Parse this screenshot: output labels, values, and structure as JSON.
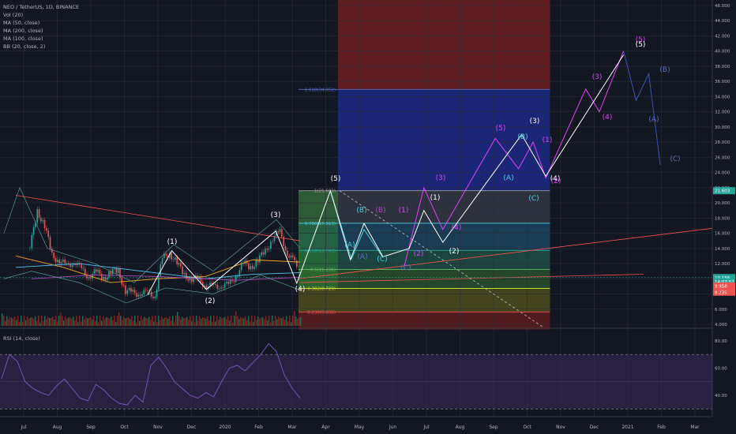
{
  "header": {
    "symbol_line": "NEO / TetherUS, 1D, BINANCE",
    "indicators": [
      "Vol (20)",
      "MA (50, close)",
      "MA (200, close)",
      "MA (100, close)",
      "BB (20, close, 2)"
    ]
  },
  "rsi_panel": {
    "label": "RSI (14, close)",
    "ticks": [
      "80.00",
      "60.00",
      "40.00"
    ]
  },
  "axis": {
    "price_ticks": [
      "46.000",
      "44.000",
      "42.000",
      "40.000",
      "38.000",
      "36.000",
      "34.000",
      "32.000",
      "30.000",
      "28.000",
      "26.000",
      "24.000",
      "22.000",
      "20.000",
      "18.000",
      "16.000",
      "14.000",
      "12.000",
      "10.000",
      "8.000",
      "6.000",
      "4.000"
    ],
    "time_ticks": [
      "Jul",
      "Aug",
      "Sep",
      "Oct",
      "Nov",
      "Dec",
      "2020",
      "Feb",
      "Mar",
      "Apr",
      "May",
      "Jun",
      "Jul",
      "Aug",
      "Sep",
      "Oct",
      "Nov",
      "Dec",
      "2021",
      "Feb",
      "Mar"
    ],
    "price_badges": [
      {
        "text": "21.603",
        "color": "#26a69a",
        "price": 21.603
      },
      {
        "text": "10.156",
        "color": "#26a69a",
        "price": 10.156
      },
      {
        "text": "14:07:57",
        "color": "#26a69a",
        "price": 9.6
      },
      {
        "text": "9.958",
        "color": "#ef5350",
        "price": 9.05
      },
      {
        "text": "8.235",
        "color": "#ef5350",
        "price": 8.235
      }
    ]
  },
  "fib_labels": [
    {
      "text": "1.618(34.952)",
      "price": 34.952
    },
    {
      "text": "1(21.603)",
      "price": 21.603
    },
    {
      "text": "0.786(17.313)",
      "price": 17.313
    },
    {
      "text": "0.618(13.743)",
      "price": 13.743
    },
    {
      "text": "0.5(11.236)",
      "price": 11.236
    },
    {
      "text": "0.382(8.729)",
      "price": 8.729
    },
    {
      "text": "0.236(5.636)",
      "price": 5.636
    }
  ],
  "wave_labels": [
    {
      "text": "(1)",
      "x": 218,
      "y": 309,
      "color": "#ffffff"
    },
    {
      "text": "(2)",
      "x": 266,
      "y": 384,
      "color": "#ffffff"
    },
    {
      "text": "(3)",
      "x": 349,
      "y": 275,
      "color": "#ffffff"
    },
    {
      "text": "(4)",
      "x": 380,
      "y": 369,
      "color": "#ffffff"
    },
    {
      "text": "(5)",
      "x": 425,
      "y": 229,
      "color": "#ffffff"
    },
    {
      "text": "(A)",
      "x": 443,
      "y": 313,
      "color": "#4dd0e1"
    },
    {
      "text": "(B)",
      "x": 458,
      "y": 269,
      "color": "#4dd0e1"
    },
    {
      "text": "(C)",
      "x": 484,
      "y": 331,
      "color": "#4dd0e1"
    },
    {
      "text": "(A)",
      "x": 459,
      "y": 328,
      "color": "#5c6bc0"
    },
    {
      "text": "(B)",
      "x": 482,
      "y": 269,
      "color": "#ab47bc"
    },
    {
      "text": "(C)",
      "x": 514,
      "y": 342,
      "color": "#5c6bc0"
    },
    {
      "text": "(1)",
      "x": 511,
      "y": 269,
      "color": "#e040fb"
    },
    {
      "text": "(2)",
      "x": 530,
      "y": 324,
      "color": "#e040fb"
    },
    {
      "text": "(3)",
      "x": 558,
      "y": 228,
      "color": "#e040fb"
    },
    {
      "text": "(1)",
      "x": 551,
      "y": 253,
      "color": "#ffffff"
    },
    {
      "text": "(2)",
      "x": 575,
      "y": 321,
      "color": "#ffffff"
    },
    {
      "text": "(4)",
      "x": 578,
      "y": 291,
      "color": "#e040fb"
    },
    {
      "text": "(5)",
      "x": 634,
      "y": 165,
      "color": "#e040fb"
    },
    {
      "text": "(A)",
      "x": 644,
      "y": 228,
      "color": "#4dd0e1"
    },
    {
      "text": "(B)",
      "x": 662,
      "y": 176,
      "color": "#4dd0e1"
    },
    {
      "text": "(3)",
      "x": 677,
      "y": 156,
      "color": "#ffffff"
    },
    {
      "text": "(C)",
      "x": 676,
      "y": 254,
      "color": "#4dd0e1"
    },
    {
      "text": "(1)",
      "x": 693,
      "y": 180,
      "color": "#e040fb"
    },
    {
      "text": "(4)",
      "x": 703,
      "y": 229,
      "color": "#ffffff"
    },
    {
      "text": "(2)",
      "x": 704,
      "y": 232,
      "color": "#e040fb"
    },
    {
      "text": "(3)",
      "x": 756,
      "y": 100,
      "color": "#e040fb"
    },
    {
      "text": "(4)",
      "x": 769,
      "y": 151,
      "color": "#e040fb"
    },
    {
      "text": "(5)",
      "x": 811,
      "y": 53,
      "color": "#e040fb"
    },
    {
      "text": "(5)",
      "x": 811,
      "y": 59,
      "color": "#ffffff"
    },
    {
      "text": "(B)",
      "x": 842,
      "y": 91,
      "color": "#5c6bc0"
    },
    {
      "text": "(A)",
      "x": 828,
      "y": 154,
      "color": "#5c6bc0"
    },
    {
      "text": "(C)",
      "x": 855,
      "y": 204,
      "color": "#5c6bc0"
    }
  ],
  "chart_data": {
    "type": "line",
    "ylim": [
      3.0,
      47.0
    ],
    "grid": true,
    "price_path": [
      [
        "2019-06-25",
        14.0
      ],
      [
        "2019-07-02",
        19.0
      ],
      [
        "2019-07-09",
        17.0
      ],
      [
        "2019-07-16",
        13.0
      ],
      [
        "2019-07-23",
        12.5
      ],
      [
        "2019-07-30",
        11.5
      ],
      [
        "2019-08-06",
        12.5
      ],
      [
        "2019-08-13",
        11.0
      ],
      [
        "2019-08-20",
        10.5
      ],
      [
        "2019-08-27",
        10.8
      ],
      [
        "2019-09-03",
        10.2
      ],
      [
        "2019-09-10",
        10.8
      ],
      [
        "2019-09-17",
        11.0
      ],
      [
        "2019-09-24",
        8.5
      ],
      [
        "2019-10-01",
        8.0
      ],
      [
        "2019-10-08",
        8.3
      ],
      [
        "2019-10-15",
        7.9
      ],
      [
        "2019-10-22",
        8.0
      ],
      [
        "2019-10-29",
        12.5
      ],
      [
        "2019-11-05",
        13.5
      ],
      [
        "2019-11-12",
        12.0
      ],
      [
        "2019-11-19",
        10.5
      ],
      [
        "2019-11-26",
        10.0
      ],
      [
        "2019-12-03",
        9.8
      ],
      [
        "2019-12-10",
        9.2
      ],
      [
        "2019-12-17",
        8.8
      ],
      [
        "2019-12-24",
        9.3
      ],
      [
        "2019-12-31",
        9.0
      ],
      [
        "2020-01-07",
        10.5
      ],
      [
        "2020-01-14",
        12.0
      ],
      [
        "2020-01-21",
        11.5
      ],
      [
        "2020-01-28",
        12.5
      ],
      [
        "2020-02-04",
        13.5
      ],
      [
        "2020-02-11",
        15.5
      ],
      [
        "2020-02-18",
        16.0
      ],
      [
        "2020-02-25",
        13.5
      ],
      [
        "2020-03-03",
        12.0
      ],
      [
        "2020-03-07",
        10.2
      ]
    ],
    "wave_white": [
      [
        "2019-10-15",
        7.9
      ],
      [
        "2019-11-07",
        13.7
      ],
      [
        "2019-12-10",
        8.6
      ],
      [
        "2020-02-14",
        16.3
      ],
      [
        "2020-03-05",
        9.4
      ],
      [
        "2020-04-06",
        21.6
      ],
      [
        "2020-04-25",
        12.5
      ],
      [
        "2020-05-08",
        17.3
      ],
      [
        "2020-05-26",
        12.9
      ],
      [
        "2020-06-20",
        14.0
      ],
      [
        "2020-07-04",
        19.0
      ],
      [
        "2020-07-22",
        14.8
      ],
      [
        "2020-10-05",
        29.0
      ],
      [
        "2020-10-28",
        23.5
      ],
      [
        "2021-01-10",
        39.5
      ]
    ],
    "wave_teal": [
      [
        "2020-04-06",
        21.6
      ],
      [
        "2020-04-26",
        12.6
      ],
      [
        "2020-05-08",
        16.5
      ],
      [
        "2020-05-26",
        12.8
      ]
    ],
    "wave_purple": [
      [
        "2020-06-15",
        11.5
      ],
      [
        "2020-07-04",
        22.0
      ],
      [
        "2020-07-22",
        16.5
      ],
      [
        "2020-09-10",
        28.5
      ],
      [
        "2020-10-02",
        24.5
      ],
      [
        "2020-10-16",
        28.0
      ],
      [
        "2020-10-28",
        23.3
      ],
      [
        "2020-12-05",
        35.0
      ],
      [
        "2020-12-18",
        32.0
      ],
      [
        "2021-01-10",
        40.0
      ]
    ],
    "wave_navy": [
      [
        "2021-01-10",
        40.0
      ],
      [
        "2021-01-22",
        33.5
      ],
      [
        "2021-02-03",
        37.0
      ],
      [
        "2021-02-14",
        25.0
      ]
    ],
    "fib_zone": {
      "start": "2020-03-14",
      "end": "2020-11-01"
    },
    "fib_levels": [
      34.952,
      21.603,
      17.313,
      13.743,
      11.236,
      8.729,
      5.636
    ],
    "rsi_lim": [
      28,
      85
    ],
    "rsi_levels": [
      70,
      30
    ],
    "rsi": [
      52,
      70,
      65,
      50,
      45,
      42,
      40,
      47,
      52,
      45,
      38,
      36,
      48,
      44,
      38,
      34,
      33,
      40,
      35,
      62,
      68,
      60,
      50,
      45,
      40,
      38,
      42,
      39,
      50,
      60,
      62,
      58,
      64,
      70,
      78,
      72,
      55,
      45,
      38
    ]
  }
}
